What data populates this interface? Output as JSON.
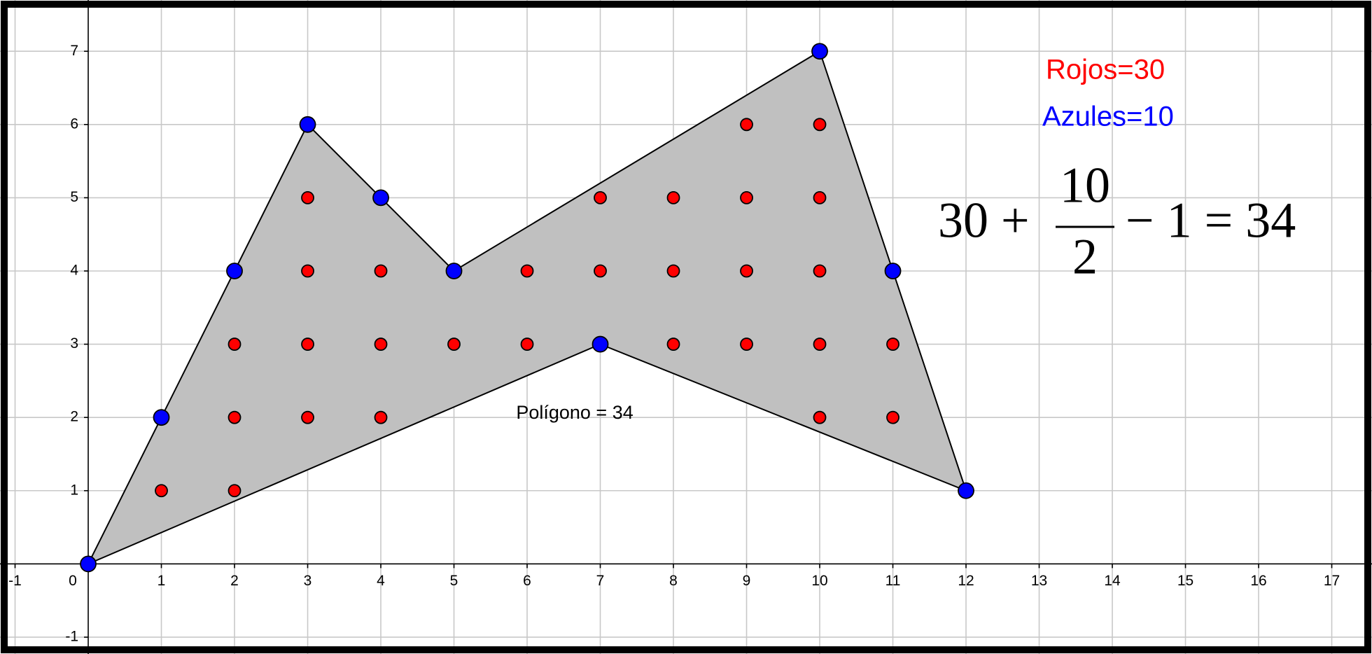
{
  "chart_data": {
    "type": "scatter",
    "xlim": [
      -1.206,
      17.55
    ],
    "ylim": [
      -1.23,
      7.7
    ],
    "xticks": [
      -1,
      0,
      1,
      2,
      3,
      4,
      5,
      6,
      7,
      8,
      9,
      10,
      11,
      12,
      13,
      14,
      15,
      16,
      17
    ],
    "yticks": [
      -1,
      1,
      2,
      3,
      4,
      5,
      6,
      7
    ],
    "grid": true,
    "polygon": {
      "color": "#c0c0c0",
      "label": "Polígono = 34",
      "label_x": 5.85,
      "label_y": 2.05
    },
    "series": [
      {
        "color": "#ff0000",
        "x": [
          1,
          2,
          2,
          3,
          4,
          10,
          11,
          2,
          3,
          4,
          5,
          6,
          8,
          9,
          10,
          11,
          3,
          4,
          6,
          7,
          8,
          9,
          10,
          3,
          7,
          8,
          9,
          10,
          9,
          10
        ],
        "y": [
          1,
          1,
          2,
          2,
          2,
          2,
          2,
          3,
          3,
          3,
          3,
          3,
          3,
          3,
          3,
          3,
          4,
          4,
          4,
          4,
          4,
          4,
          4,
          5,
          5,
          5,
          5,
          5,
          6,
          6
        ]
      },
      {
        "color": "#0000ff",
        "x": [
          0,
          1,
          2,
          3,
          4,
          5,
          10,
          11,
          12,
          7
        ],
        "y": [
          0,
          2,
          4,
          6,
          5,
          4,
          7,
          4,
          1,
          3
        ]
      }
    ],
    "annotations": [
      {
        "text": "Rojos=30",
        "color": "#ff0000"
      },
      {
        "text": "Azules=10",
        "color": "#0000ff"
      }
    ],
    "formula": {
      "left": "30 +",
      "numerator": "10",
      "denominator": "2",
      "right": "− 1 = 34"
    }
  }
}
